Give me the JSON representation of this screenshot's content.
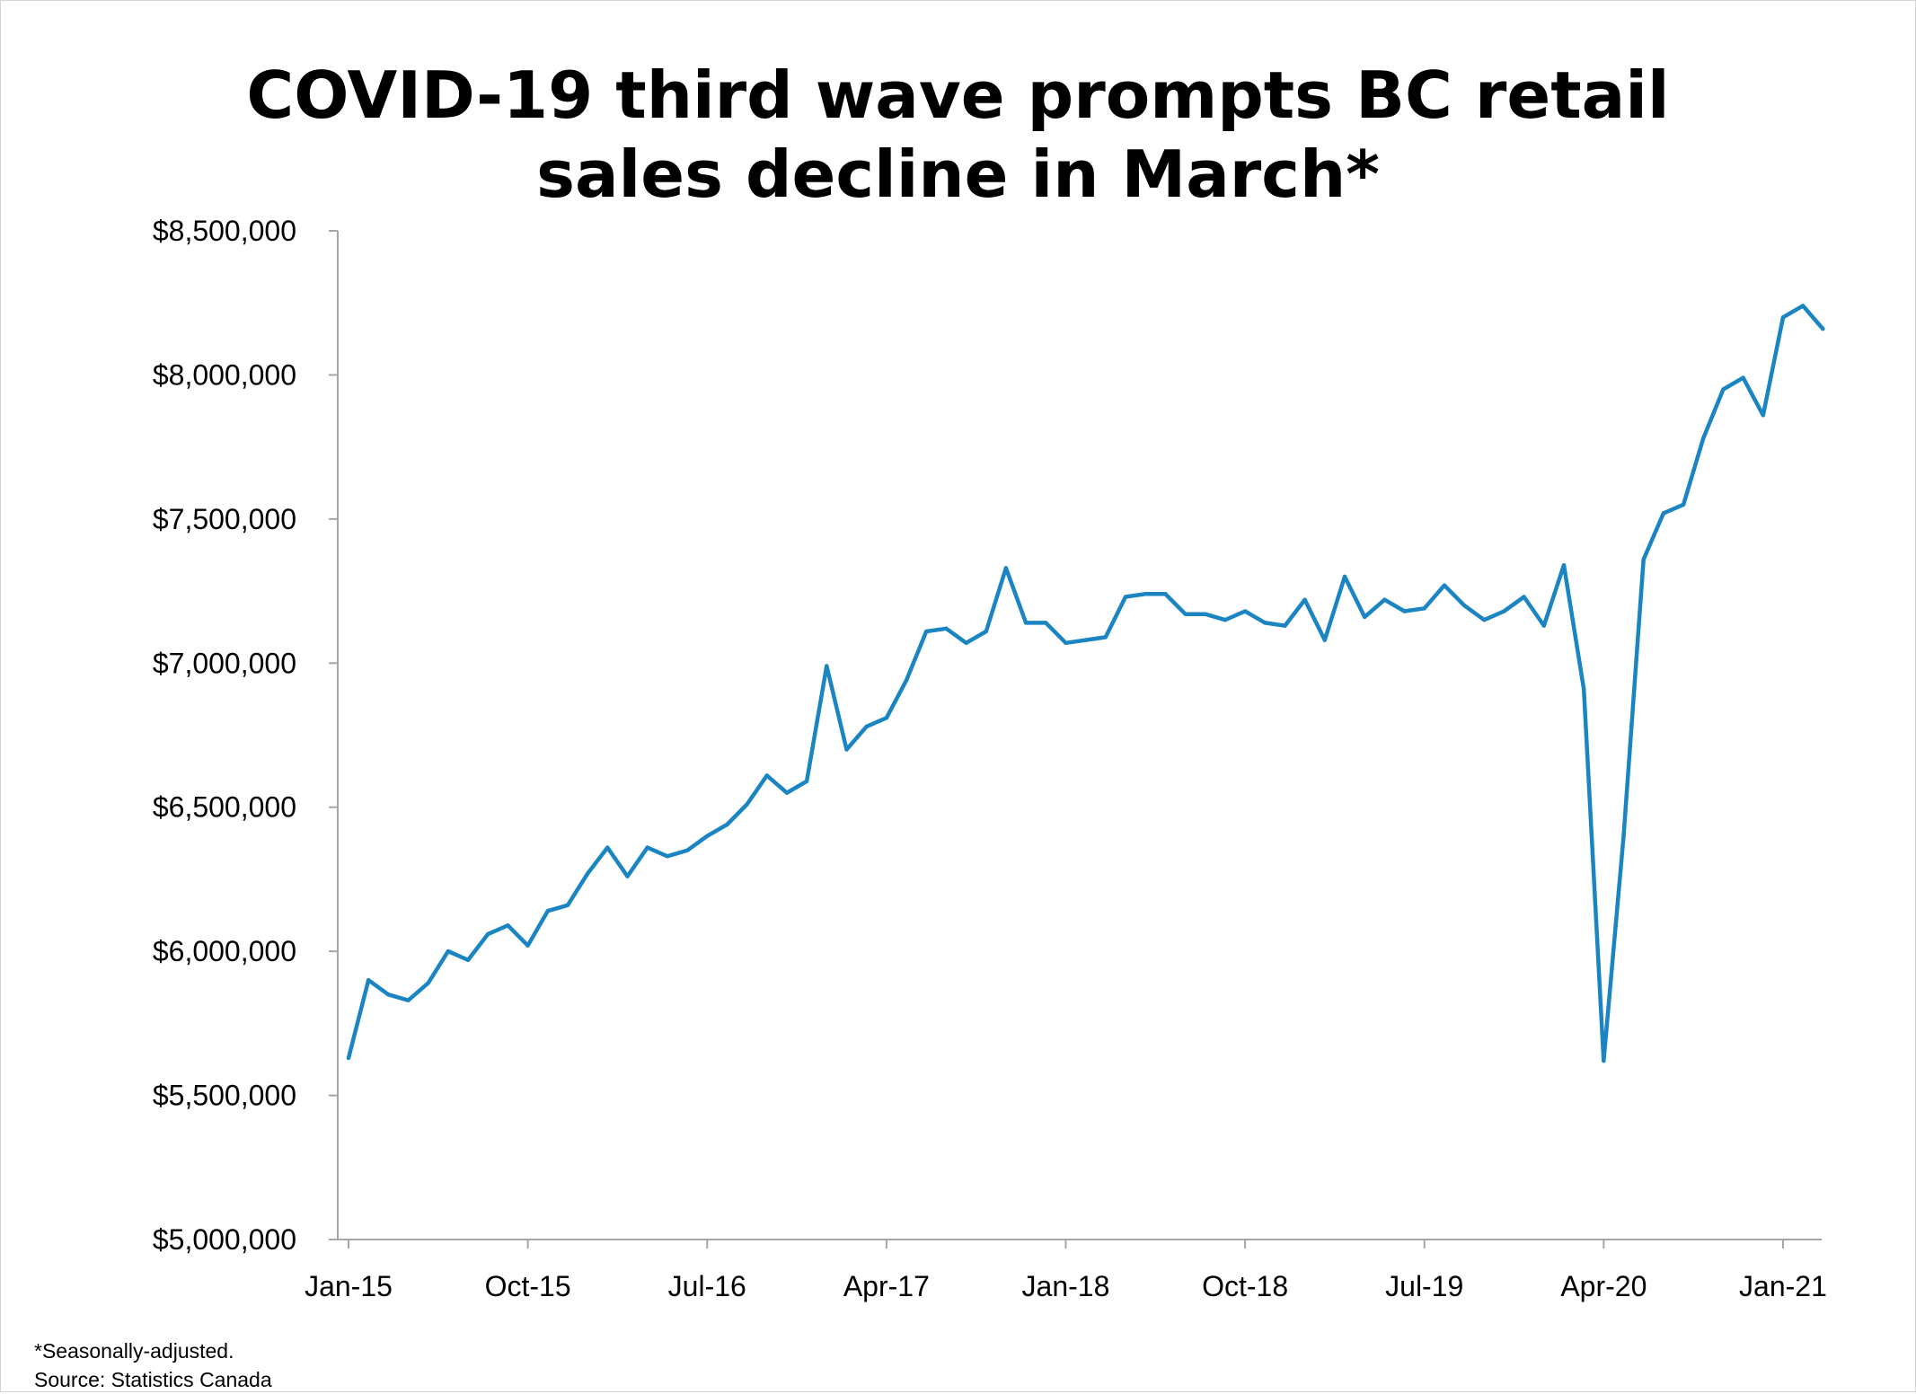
{
  "chart_data": {
    "type": "line",
    "title_lines": [
      "COVID-19 third wave prompts BC retail",
      "sales decline in March*"
    ],
    "xlabel": "",
    "ylabel": "",
    "ylim": [
      5000000,
      8500000
    ],
    "yticks": [
      5000000,
      5500000,
      6000000,
      6500000,
      7000000,
      7500000,
      8000000,
      8500000
    ],
    "ytick_labels": [
      "$5,000,000",
      "$5,500,000",
      "$6,000,000",
      "$6,500,000",
      "$7,000,000",
      "$7,500,000",
      "$8,000,000",
      "$8,500,000"
    ],
    "x_start": "Jan-15",
    "x_tick_labels": [
      {
        "label": "Jan-15",
        "index": 0
      },
      {
        "label": "Oct-15",
        "index": 9
      },
      {
        "label": "Jul-16",
        "index": 18
      },
      {
        "label": "Apr-17",
        "index": 27
      },
      {
        "label": "Jan-18",
        "index": 36
      },
      {
        "label": "Oct-18",
        "index": 45
      },
      {
        "label": "Jul-19",
        "index": 54
      },
      {
        "label": "Apr-20",
        "index": 63
      },
      {
        "label": "Jan-21",
        "index": 72
      }
    ],
    "grid": false,
    "legend": "none",
    "line_color": "#1a85c2",
    "series": [
      {
        "values": [
          5630000,
          5900000,
          5850000,
          5830000,
          5890000,
          6000000,
          5970000,
          6060000,
          6090000,
          6020000,
          6140000,
          6160000,
          6270000,
          6360000,
          6260000,
          6360000,
          6330000,
          6350000,
          6400000,
          6440000,
          6510000,
          6610000,
          6550000,
          6590000,
          6990000,
          6700000,
          6780000,
          6810000,
          6940000,
          7110000,
          7120000,
          7070000,
          7110000,
          7330000,
          7140000,
          7140000,
          7070000,
          7080000,
          7090000,
          7230000,
          7240000,
          7240000,
          7170000,
          7170000,
          7150000,
          7180000,
          7140000,
          7130000,
          7220000,
          7080000,
          7300000,
          7160000,
          7220000,
          7180000,
          7190000,
          7270000,
          7200000,
          7150000,
          7180000,
          7230000,
          7130000,
          7340000,
          6910000,
          5620000,
          6400000,
          7360000,
          7520000,
          7550000,
          7780000,
          7950000,
          7990000,
          7860000,
          8200000,
          8240000,
          8160000
        ]
      }
    ]
  },
  "footnotes": {
    "note": "*Seasonally-adjusted.",
    "source": "Source: Statistics Canada"
  }
}
